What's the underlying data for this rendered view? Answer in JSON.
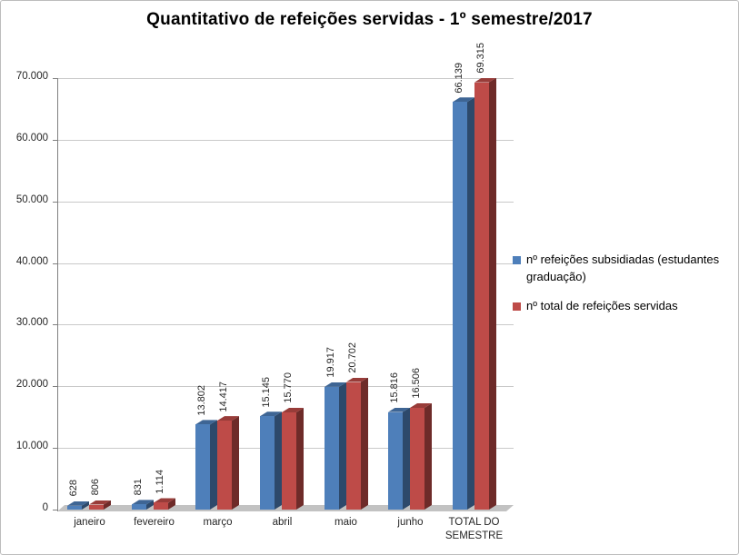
{
  "chart_data": {
    "type": "bar",
    "effect": "3d",
    "title": "Quantitativo de refeições servidas - 1º semestre/2017",
    "categories": [
      "janeiro",
      "fevereiro",
      "março",
      "abril",
      "maio",
      "junho",
      "TOTAL DO SEMESTRE"
    ],
    "series": [
      {
        "name": "nº refeições subsidiadas (estudantes graduação)",
        "color": "#4E7FBA",
        "values": [
          628,
          831,
          13802,
          15145,
          19917,
          15816,
          66139
        ],
        "value_labels": [
          "628",
          "831",
          "13.802",
          "15.145",
          "19.917",
          "15.816",
          "66.139"
        ]
      },
      {
        "name": "nº total de refeições servidas",
        "color": "#BE4B48",
        "values": [
          806,
          1114,
          14417,
          15770,
          20702,
          16506,
          69315
        ],
        "value_labels": [
          "806",
          "1.114",
          "14.417",
          "15.770",
          "20.702",
          "16.506",
          "69.315"
        ]
      }
    ],
    "xlabel": "",
    "ylabel": "",
    "ylim": [
      0,
      70000
    ],
    "ytick_interval": 10000,
    "ytick_labels": [
      "0",
      "10.000",
      "20.000",
      "30.000",
      "40.000",
      "50.000",
      "60.000",
      "70.000"
    ],
    "grid": true,
    "legend_position": "right"
  }
}
